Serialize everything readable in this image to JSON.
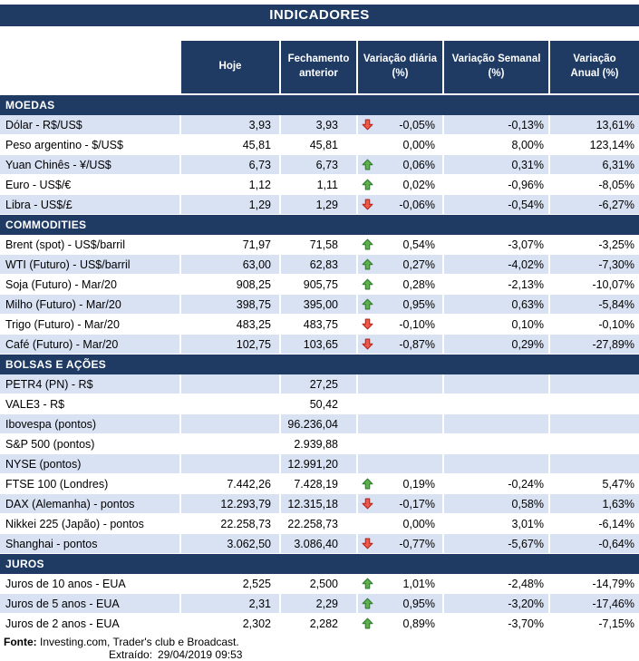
{
  "chart_data": {
    "type": "table",
    "title": "INDICADORES",
    "columns": [
      "Hoje",
      "Fechamento\nanterior",
      "Variação diária\n(%)",
      "Variação Semanal\n(%)",
      "Variação\nAnual (%)"
    ],
    "sections": [
      {
        "id": "moedas",
        "name": "MOEDAS",
        "rows": [
          {
            "label": "Dólar - R$/US$",
            "hoje": "3,93",
            "fechamento": "3,93",
            "arrow": "down",
            "diaria": "-0,05%",
            "semanal": "-0,13%",
            "anual": "13,61%"
          },
          {
            "label": "Peso argentino - $/US$",
            "hoje": "45,81",
            "fechamento": "45,81",
            "arrow": "",
            "diaria": "0,00%",
            "semanal": "8,00%",
            "anual": "123,14%"
          },
          {
            "label": "Yuan Chinês - ¥/US$",
            "hoje": "6,73",
            "fechamento": "6,73",
            "arrow": "up",
            "diaria": "0,06%",
            "semanal": "0,31%",
            "anual": "6,31%"
          },
          {
            "label": "Euro - US$/€",
            "hoje": "1,12",
            "fechamento": "1,11",
            "arrow": "up",
            "diaria": "0,02%",
            "semanal": "-0,96%",
            "anual": "-8,05%"
          },
          {
            "label": "Libra - US$/£",
            "hoje": "1,29",
            "fechamento": "1,29",
            "arrow": "down",
            "diaria": "-0,06%",
            "semanal": "-0,54%",
            "anual": "-6,27%"
          }
        ]
      },
      {
        "id": "commodities",
        "name": "COMMODITIES",
        "rows": [
          {
            "label": "Brent (spot) - US$/barril",
            "hoje": "71,97",
            "fechamento": "71,58",
            "arrow": "up",
            "diaria": "0,54%",
            "semanal": "-3,07%",
            "anual": "-3,25%"
          },
          {
            "label": "WTI (Futuro) - US$/barril",
            "hoje": "63,00",
            "fechamento": "62,83",
            "arrow": "up",
            "diaria": "0,27%",
            "semanal": "-4,02%",
            "anual": "-7,30%"
          },
          {
            "label": "Soja (Futuro) - Mar/20",
            "hoje": "908,25",
            "fechamento": "905,75",
            "arrow": "up",
            "diaria": "0,28%",
            "semanal": "-2,13%",
            "anual": "-10,07%"
          },
          {
            "label": "Milho (Futuro) - Mar/20",
            "hoje": "398,75",
            "fechamento": "395,00",
            "arrow": "up",
            "diaria": "0,95%",
            "semanal": "0,63%",
            "anual": "-5,84%"
          },
          {
            "label": "Trigo (Futuro) - Mar/20",
            "hoje": "483,25",
            "fechamento": "483,75",
            "arrow": "down",
            "diaria": "-0,10%",
            "semanal": "0,10%",
            "anual": "-0,10%"
          },
          {
            "label": "Café (Futuro) - Mar/20",
            "hoje": "102,75",
            "fechamento": "103,65",
            "arrow": "down",
            "diaria": "-0,87%",
            "semanal": "0,29%",
            "anual": "-27,89%"
          }
        ]
      },
      {
        "id": "bolsas-e-acoes",
        "name": "BOLSAS E AÇÕES",
        "rows": [
          {
            "label": "PETR4 (PN) - R$",
            "hoje": "",
            "fechamento": "27,25",
            "arrow": "",
            "diaria": "",
            "semanal": "",
            "anual": ""
          },
          {
            "label": "VALE3 - R$",
            "hoje": "",
            "fechamento": "50,42",
            "arrow": "",
            "diaria": "",
            "semanal": "",
            "anual": ""
          },
          {
            "label": "Ibovespa (pontos)",
            "hoje": "",
            "fechamento": "96.236,04",
            "arrow": "",
            "diaria": "",
            "semanal": "",
            "anual": ""
          },
          {
            "label": "S&P 500 (pontos)",
            "hoje": "",
            "fechamento": "2.939,88",
            "arrow": "",
            "diaria": "",
            "semanal": "",
            "anual": ""
          },
          {
            "label": "NYSE (pontos)",
            "hoje": "",
            "fechamento": "12.991,20",
            "arrow": "",
            "diaria": "",
            "semanal": "",
            "anual": ""
          },
          {
            "label": "FTSE 100 (Londres)",
            "hoje": "7.442,26",
            "fechamento": "7.428,19",
            "arrow": "up",
            "diaria": "0,19%",
            "semanal": "-0,24%",
            "anual": "5,47%"
          },
          {
            "label": "DAX (Alemanha) - pontos",
            "hoje": "12.293,79",
            "fechamento": "12.315,18",
            "arrow": "down",
            "diaria": "-0,17%",
            "semanal": "0,58%",
            "anual": "1,63%"
          },
          {
            "label": "Nikkei 225 (Japão) - pontos",
            "hoje": "22.258,73",
            "fechamento": "22.258,73",
            "arrow": "",
            "diaria": "0,00%",
            "semanal": "3,01%",
            "anual": "-6,14%"
          },
          {
            "label": "Shanghai - pontos",
            "hoje": "3.062,50",
            "fechamento": "3.086,40",
            "arrow": "down",
            "diaria": "-0,77%",
            "semanal": "-5,67%",
            "anual": "-0,64%"
          }
        ]
      },
      {
        "id": "juros",
        "name": "JUROS",
        "rows": [
          {
            "label": "Juros de 10 anos - EUA",
            "hoje": "2,525",
            "fechamento": "2,500",
            "arrow": "up",
            "diaria": "1,01%",
            "semanal": "-2,48%",
            "anual": "-14,79%"
          },
          {
            "label": "Juros de 5 anos - EUA",
            "hoje": "2,31",
            "fechamento": "2,29",
            "arrow": "up",
            "diaria": "0,95%",
            "semanal": "-3,20%",
            "anual": "-17,46%"
          },
          {
            "label": "Juros de 2 anos - EUA",
            "hoje": "2,302",
            "fechamento": "2,282",
            "arrow": "up",
            "diaria": "0,89%",
            "semanal": "-3,70%",
            "anual": "-7,15%"
          }
        ]
      }
    ]
  },
  "footer": {
    "fonte_label": "Fonte:",
    "fonte_text": " Investing.com, Trader's club e Broadcast.",
    "extraido_label": "Extraído:",
    "extraido_value": "29/04/2019 09:53"
  },
  "colors": {
    "header_bg": "#1f3b64",
    "shaded_row": "#d9e2f3",
    "up_arrow_fill": "#5fb04c",
    "up_arrow_stroke": "#2e7d32",
    "down_arrow_fill": "#f0594a",
    "down_arrow_stroke": "#b3281e"
  }
}
